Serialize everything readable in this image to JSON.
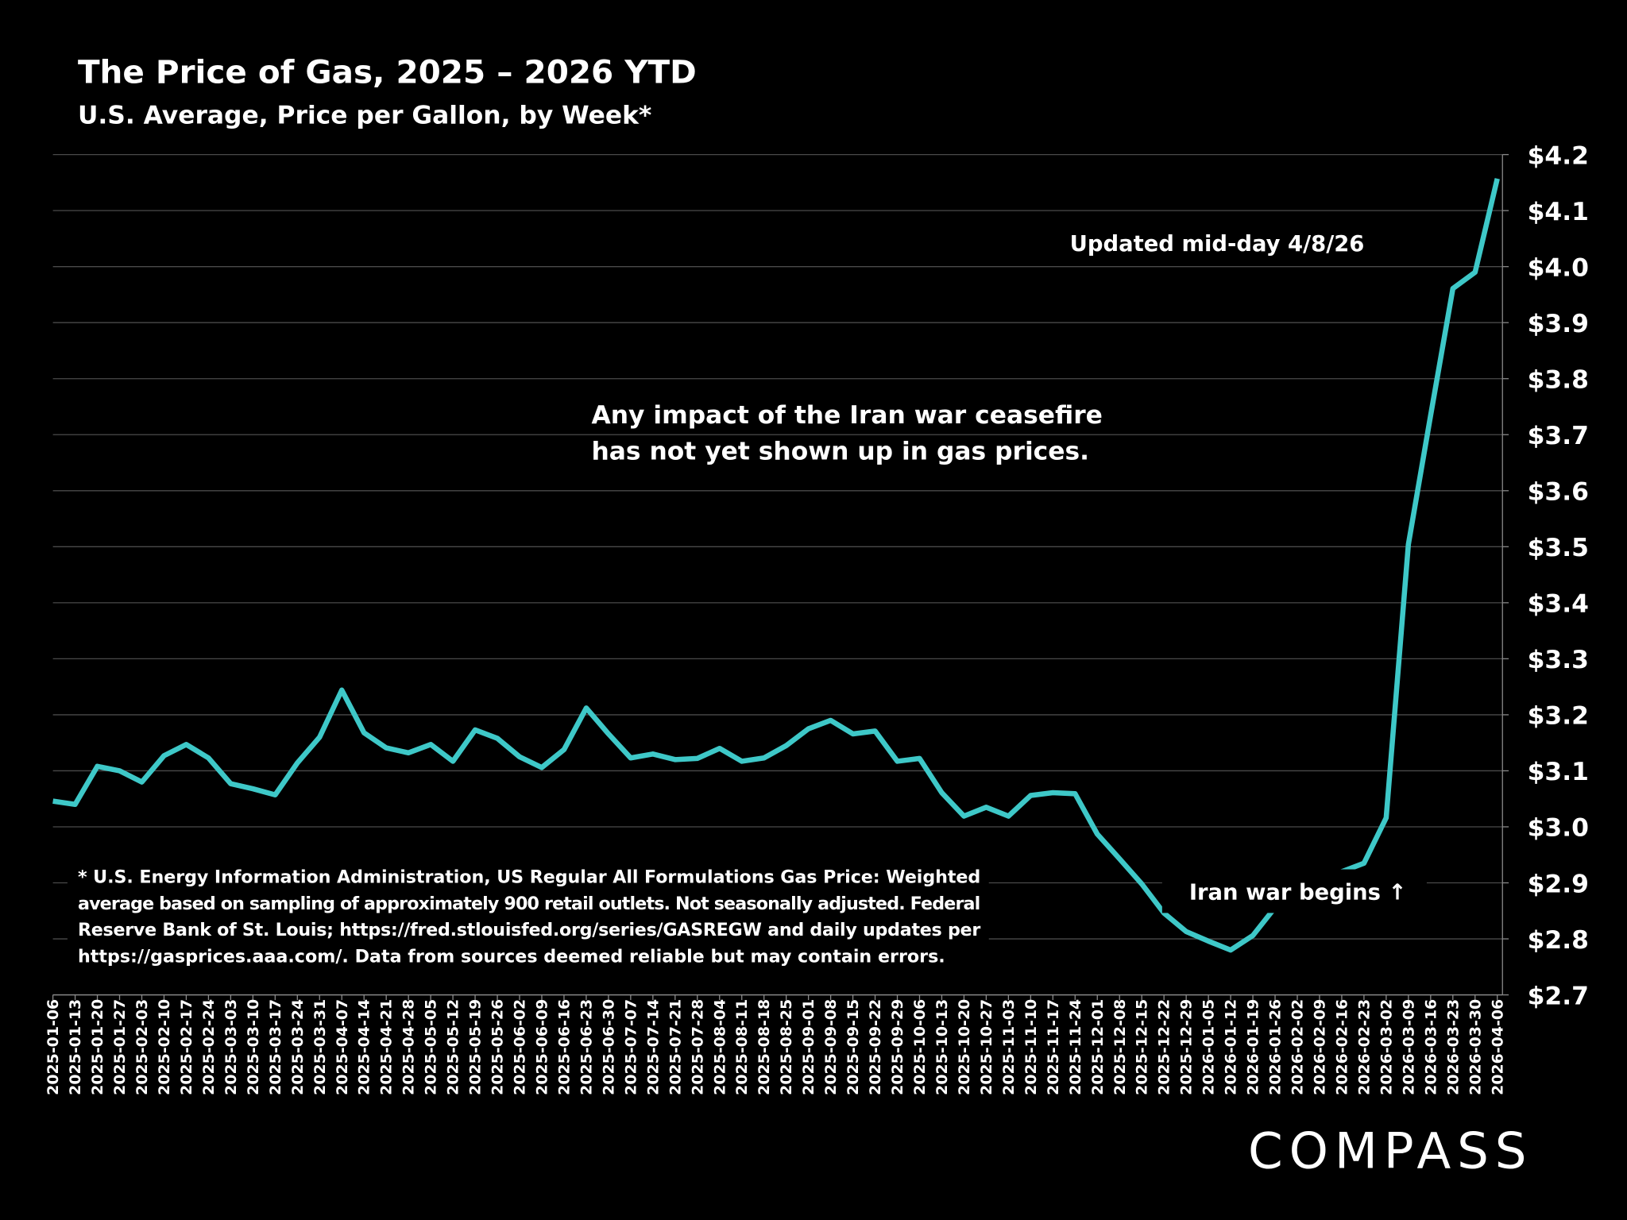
{
  "chart_data": {
    "type": "line",
    "title": "The Price of Gas, 2025 – 2026 YTD",
    "subtitle": "U.S. Average, Price per Gallon, by Week*",
    "categories": [
      "2025-01-06",
      "2025-01-13",
      "2025-01-20",
      "2025-01-27",
      "2025-02-03",
      "2025-02-10",
      "2025-02-17",
      "2025-02-24",
      "2025-03-03",
      "2025-03-10",
      "2025-03-17",
      "2025-03-24",
      "2025-03-31",
      "2025-04-07",
      "2025-04-14",
      "2025-04-21",
      "2025-04-28",
      "2025-05-05",
      "2025-05-12",
      "2025-05-19",
      "2025-05-26",
      "2025-06-02",
      "2025-06-09",
      "2025-06-16",
      "2025-06-23",
      "2025-06-30",
      "2025-07-07",
      "2025-07-14",
      "2025-07-21",
      "2025-07-28",
      "2025-08-04",
      "2025-08-11",
      "2025-08-18",
      "2025-08-25",
      "2025-09-01",
      "2025-09-08",
      "2025-09-15",
      "2025-09-22",
      "2025-09-29",
      "2025-10-06",
      "2025-10-13",
      "2025-10-20",
      "2025-10-27",
      "2025-11-03",
      "2025-11-10",
      "2025-11-17",
      "2025-11-24",
      "2025-12-01",
      "2025-12-08",
      "2025-12-15",
      "2025-12-22",
      "2025-12-29",
      "2026-01-05",
      "2026-01-12",
      "2026-01-19",
      "2026-01-26",
      "2026-02-02",
      "2026-02-09",
      "2026-02-16",
      "2026-02-23",
      "2026-03-02",
      "2026-03-09",
      "2026-03-16",
      "2026-03-23",
      "2026-03-30",
      "2026-04-06"
    ],
    "values": [
      3.046,
      3.04,
      3.108,
      3.1,
      3.08,
      3.127,
      3.147,
      3.123,
      3.077,
      3.068,
      3.057,
      3.114,
      3.16,
      3.244,
      3.168,
      3.141,
      3.132,
      3.147,
      3.117,
      3.173,
      3.158,
      3.125,
      3.106,
      3.138,
      3.212,
      3.166,
      3.123,
      3.13,
      3.12,
      3.122,
      3.14,
      3.117,
      3.123,
      3.145,
      3.175,
      3.19,
      3.166,
      3.171,
      3.117,
      3.122,
      3.061,
      3.019,
      3.035,
      3.019,
      3.056,
      3.061,
      3.059,
      2.987,
      2.943,
      2.898,
      2.846,
      2.813,
      2.796,
      2.78,
      2.806,
      2.856,
      2.883,
      2.906,
      2.92,
      2.935,
      3.016,
      3.504,
      3.735,
      3.961,
      3.99,
      4.157
    ],
    "color": "#3ec8c8",
    "ylim": [
      2.7,
      4.2
    ],
    "yticks": [
      {
        "value": 2.7,
        "label": "$2.7"
      },
      {
        "value": 2.8,
        "label": "$2.8"
      },
      {
        "value": 2.9,
        "label": "$2.9"
      },
      {
        "value": 3.0,
        "label": "$3.0"
      },
      {
        "value": 3.1,
        "label": "$3.1"
      },
      {
        "value": 3.2,
        "label": "$3.2"
      },
      {
        "value": 3.3,
        "label": "$3.3"
      },
      {
        "value": 3.4,
        "label": "$3.4"
      },
      {
        "value": 3.5,
        "label": "$3.5"
      },
      {
        "value": 3.6,
        "label": "$3.6"
      },
      {
        "value": 3.7,
        "label": "$3.7"
      },
      {
        "value": 3.8,
        "label": "$3.8"
      },
      {
        "value": 3.9,
        "label": "$3.9"
      },
      {
        "value": 4.0,
        "label": "$4.0"
      },
      {
        "value": 4.1,
        "label": "$4.1"
      },
      {
        "value": 4.2,
        "label": "$4.2"
      }
    ],
    "grid": true,
    "annotations": [
      "Updated mid-day 4/8/26",
      "Any impact of the Iran war ceasefire",
      "has not yet shown up in gas prices.",
      "Iran war begins ↑"
    ]
  },
  "footnote": [
    "* U.S. Energy Information Administration, US Regular All Formulations Gas Price: Weighted",
    "average based on sampling of approximately 900 retail outlets. Not seasonally adjusted. Federal",
    "Reserve Bank of St. Louis; https://fred.stlouisfed.org/series/GASREGW and daily updates per",
    "https://gasprices.aaa.com/. Data from sources deemed reliable but may contain errors."
  ],
  "logo": "COMPASS"
}
